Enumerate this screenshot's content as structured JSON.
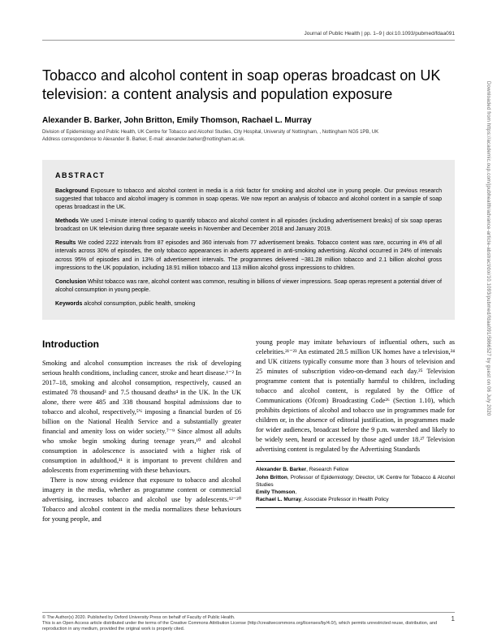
{
  "header": {
    "journal_info": "Journal of Public Health | pp. 1–9 | doi:10.1093/pubmed/fdaa091"
  },
  "title": "Tobacco and alcohol content in soap operas broadcast on UK television: a content analysis and population exposure",
  "authors": "Alexander B. Barker, John Britton, Emily Thomson, Rachael L. Murray",
  "affiliations": [
    "Division of Epidemiology and Public Health, UK Centre for Tobacco and Alcohol Studies, City Hospital, University of Nottingham, , Nottingham NG5 1PB, UK",
    "Address correspondence to Alexander B. Barker, E-mail: alexander.barker@nottingham.ac.uk."
  ],
  "abstract": {
    "heading": "ABSTRACT",
    "background_label": "Background",
    "background": "Exposure to tobacco and alcohol content in media is a risk factor for smoking and alcohol use in young people. Our previous research suggested that tobacco and alcohol imagery is common in soap operas. We now report an analysis of tobacco and alcohol content in a sample of soap operas broadcast in the UK.",
    "methods_label": "Methods",
    "methods": "We used 1-minute interval coding to quantify tobacco and alcohol content in all episodes (including advertisement breaks) of six soap operas broadcast on UK television during three separate weeks in November and December 2018 and January 2019.",
    "results_label": "Results",
    "results": "We coded 2222 intervals from 87 episodes and 360 intervals from 77 advertisement breaks. Tobacco content was rare, occurring in 4% of all intervals across 30% of episodes, the only tobacco appearances in adverts appeared in anti-smoking advertising. Alcohol occurred in 24% of intervals across 95% of episodes and in 13% of advertisement intervals. The programmes delivered ~381.28 million tobacco and 2.1 billion alcohol gross impressions to the UK population, including 18.91 million tobacco and 113 million alcohol gross impressions to children.",
    "conclusion_label": "Conclusion",
    "conclusion": "Whilst tobacco was rare, alcohol content was common, resulting in billions of viewer impressions. Soap operas represent a potential driver of alcohol consumption in young people.",
    "keywords_label": "Keywords",
    "keywords": "alcohol consumption, public health, smoking"
  },
  "intro_heading": "Introduction",
  "col1_p1": "Smoking and alcohol consumption increases the risk of developing serious health conditions, including cancer, stroke and heart disease.¹⁻² In 2017–18, smoking and alcohol consumption, respectively, caused an estimated 78 thousand³ and 7.5 thousand deaths⁴ in the UK. In the UK alone, there were 485 and 338 thousand hospital admissions due to tobacco and alcohol, respectively,⁵'⁶ imposing a financial burden of £6 billion on the National Health Service and a substantially greater financial and amenity loss on wider society.⁷⁻⁹ Since almost all adults who smoke begin smoking during teenage years,¹⁰ and alcohol consumption in adolescence is associated with a higher risk of consumption in adulthood,¹¹ it is important to prevent children and adolescents from experimenting with these behaviours.",
  "col1_p2": "There is now strong evidence that exposure to tobacco and alcohol imagery in the media, whether as programme content or commercial advertising, increases tobacco and alcohol use by adolescents.¹²⁻²⁰ Tobacco and alcohol content in the media normalizes these behaviours for young people, and",
  "col2_p1": "young people may imitate behaviours of influential others, such as celebrities.²¹⁻²³ An estimated 28.5 million UK homes have a television,²⁴ and UK citizens typically consume more than 3 hours of television and 25 minutes of subscription video-on-demand each day.²⁵ Television programme content that is potentially harmful to children, including tobacco and alcohol content, is regulated by the Office of Communications (Ofcom) Broadcasting Code²⁶ (Section 1.10), which prohibits depictions of alcohol and tobacco use in programmes made for children or, in the absence of editorial justification, in programmes made for wider audiences, broadcast before the 9 p.m. watershed and likely to be widely seen, heard or accessed by those aged under 18.²⁷ Television advertising content is regulated by the Advertising Standards",
  "author_box": [
    {
      "name": "Alexander B. Barker",
      "role": ", Research Fellow"
    },
    {
      "name": "John Britton",
      "role": ", Professor of Epidemiology; Director, UK Centre for Tobacco & Alcohol Studies"
    },
    {
      "name": "Emily Thomson",
      "role": ","
    },
    {
      "name": "Rachael L. Murray",
      "role": ", Associate Professor in Health Policy"
    }
  ],
  "footer": {
    "copyright": "© The Author(s) 2020. Published by Oxford University Press on behalf of Faculty of Public Health.",
    "license": "This is an Open Access article distributed under the terms of the Creative Commons Attribution License (http://creativecommons.org/licenses/by/4.0/), which permits unrestricted reuse, distribution, and reproduction in any medium, provided the original work is properly cited.",
    "page_num": "1"
  },
  "side_text": "Downloaded from https://academic.oup.com/jpubhealth/advance-article-abstract/doi/10.1093/pubmed/fdaa091/5866527 by guest on 06 July 2020"
}
